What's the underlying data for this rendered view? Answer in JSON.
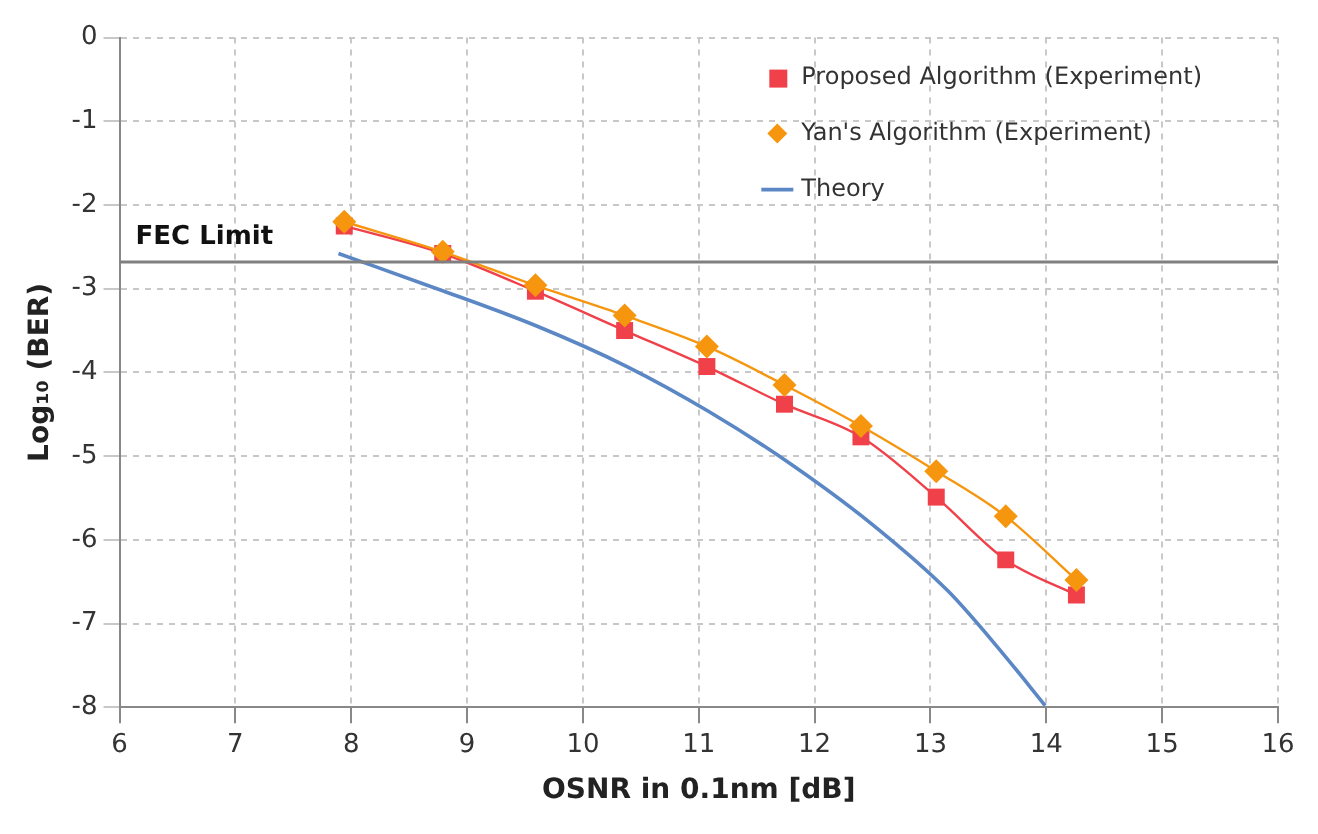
{
  "chart_data": {
    "type": "line",
    "xlabel": "OSNR in 0.1nm [dB]",
    "ylabel": "Log₁₀ (BER)",
    "xlim": [
      6,
      16
    ],
    "xticks": [
      6,
      7,
      8,
      9,
      10,
      11,
      12,
      13,
      14,
      15,
      16
    ],
    "ylim": [
      -8,
      0
    ],
    "yticks": [
      -8,
      -7,
      -6,
      -5,
      -4,
      -3,
      -2,
      -1,
      0
    ],
    "grid": true,
    "legend": "top right",
    "ref_lines": [
      {
        "axis": "y",
        "value": -2.68,
        "label": "FEC Limit",
        "color": "#808080"
      }
    ],
    "series": [
      {
        "name": "Proposed Algorithm (Experiment)",
        "color": "#f0404a",
        "marker": "square",
        "x": [
          7.94,
          8.79,
          9.59,
          10.36,
          11.07,
          11.74,
          12.4,
          13.05,
          13.65,
          14.26
        ],
        "values": [
          -2.25,
          -2.58,
          -3.03,
          -3.5,
          -3.93,
          -4.38,
          -4.77,
          -5.49,
          -6.24,
          -6.66
        ]
      },
      {
        "name": "Yan's Algorithm (Experiment)",
        "color": "#f6960f",
        "marker": "diamond",
        "x": [
          7.94,
          8.79,
          9.59,
          10.36,
          11.07,
          11.74,
          12.4,
          13.05,
          13.65,
          14.26
        ],
        "values": [
          -2.2,
          -2.56,
          -2.96,
          -3.32,
          -3.69,
          -4.15,
          -4.64,
          -5.18,
          -5.72,
          -6.48
        ]
      },
      {
        "name": "Theory",
        "color": "#5b87c5",
        "marker": "none",
        "x": [
          7.89,
          8.74,
          9.59,
          10.38,
          11.09,
          11.8,
          12.51,
          13.15,
          13.62,
          13.99
        ],
        "values": [
          -2.58,
          -3.0,
          -3.44,
          -3.93,
          -4.47,
          -5.1,
          -5.83,
          -6.61,
          -7.35,
          -7.98
        ]
      }
    ]
  }
}
